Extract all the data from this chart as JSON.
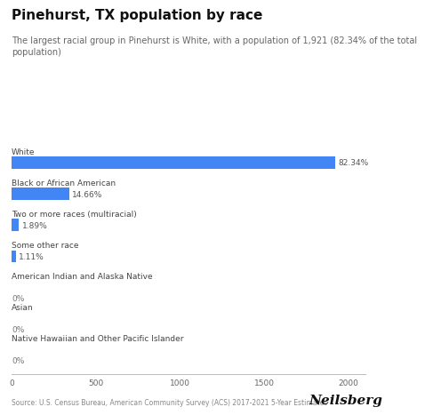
{
  "title": "Pinehurst, TX population by race",
  "subtitle": "The largest racial group in Pinehurst is White, with a population of 1,921 (82.34% of the total\npopulation)",
  "categories": [
    "White",
    "Black or African American",
    "Two or more races (multiracial)",
    "Some other race",
    "American Indian and Alaska Native",
    "Asian",
    "Native Hawaiian and Other Pacific Islander"
  ],
  "values": [
    1921,
    342,
    44,
    26,
    0,
    0,
    0
  ],
  "labels": [
    "82.34%",
    "14.66%",
    "1.89%",
    "1.11%",
    "0%",
    "0%",
    "0%"
  ],
  "bar_color": "#4285F4",
  "background_color": "#ffffff",
  "xlim": [
    0,
    2100
  ],
  "xticks": [
    0,
    500,
    1000,
    1500,
    2000
  ],
  "source_text": "Source: U.S. Census Bureau, American Community Survey (ACS) 2017-2021 5-Year Estimates",
  "brand_text": "Neilsberg",
  "title_fontsize": 11,
  "subtitle_fontsize": 7,
  "label_fontsize": 6.5,
  "category_fontsize": 6.5,
  "tick_fontsize": 6.5,
  "source_fontsize": 5.5,
  "brand_fontsize": 11
}
